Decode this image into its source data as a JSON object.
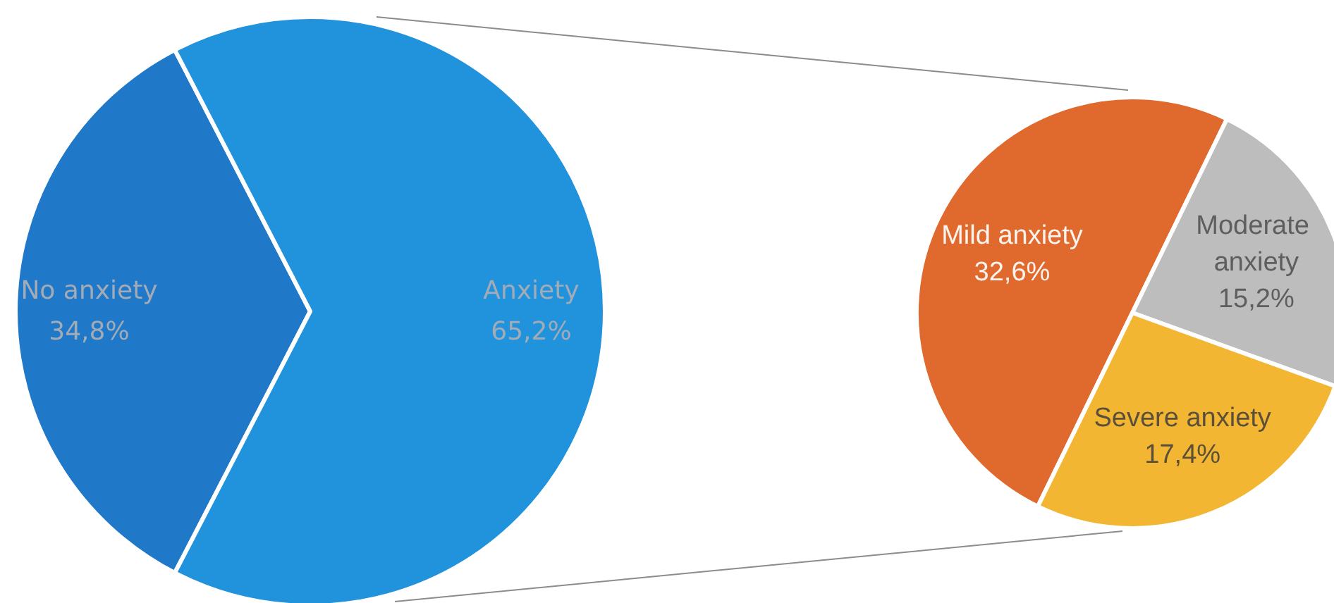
{
  "chart_data": [
    {
      "type": "pie",
      "categories": [
        "No anxiety",
        "Anxiety"
      ],
      "values": [
        34.8,
        65.2
      ],
      "colors": [
        "#1f78c8",
        "#2192dc"
      ],
      "value_labels": [
        "34,8%",
        "65,2%"
      ]
    },
    {
      "type": "pie",
      "categories": [
        "Mild anxiety",
        "Moderate anxiety",
        "Severe anxiety"
      ],
      "values": [
        32.6,
        15.2,
        17.4
      ],
      "colors": [
        "#e06a2e",
        "#bdbdbd",
        "#f2b632"
      ],
      "value_labels": [
        "32,6%",
        "15,2%",
        "17,4%"
      ]
    }
  ]
}
